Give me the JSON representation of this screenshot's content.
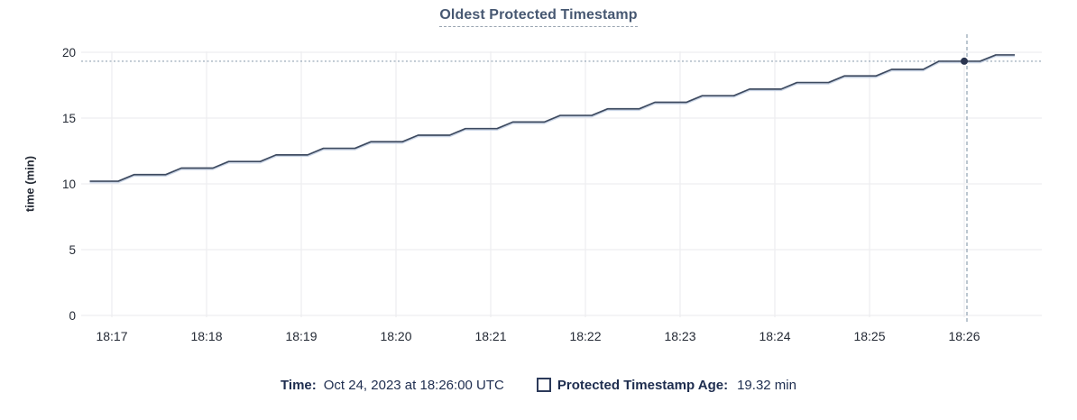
{
  "header": {
    "title": "Oldest Protected Timestamp"
  },
  "chart_data": {
    "type": "line",
    "title": "Oldest Protected Timestamp",
    "xlabel": "",
    "ylabel": "time (min)",
    "ylim": [
      0,
      20
    ],
    "y_ticks": [
      0,
      5,
      10,
      15,
      20
    ],
    "x_axis": {
      "base": "18:16:00",
      "unit": "seconds"
    },
    "x_ticks": [
      {
        "t": 60,
        "label": "18:17"
      },
      {
        "t": 120,
        "label": "18:18"
      },
      {
        "t": 180,
        "label": "18:19"
      },
      {
        "t": 240,
        "label": "18:20"
      },
      {
        "t": 300,
        "label": "18:21"
      },
      {
        "t": 360,
        "label": "18:22"
      },
      {
        "t": 420,
        "label": "18:23"
      },
      {
        "t": 480,
        "label": "18:24"
      },
      {
        "t": 540,
        "label": "18:25"
      },
      {
        "t": 600,
        "label": "18:26"
      }
    ],
    "grid": true,
    "legend_position": "bottom",
    "series": [
      {
        "name": "Protected Timestamp Age",
        "unit": "min",
        "points": [
          [
            46,
            10.2
          ],
          [
            64,
            10.2
          ],
          [
            74,
            10.7
          ],
          [
            94,
            10.7
          ],
          [
            104,
            11.2
          ],
          [
            124,
            11.2
          ],
          [
            134,
            11.7
          ],
          [
            154,
            11.7
          ],
          [
            164,
            12.2
          ],
          [
            184,
            12.2
          ],
          [
            194,
            12.7
          ],
          [
            214,
            12.7
          ],
          [
            224,
            13.2
          ],
          [
            244,
            13.2
          ],
          [
            254,
            13.7
          ],
          [
            274,
            13.7
          ],
          [
            284,
            14.2
          ],
          [
            304,
            14.2
          ],
          [
            314,
            14.7
          ],
          [
            334,
            14.7
          ],
          [
            344,
            15.2
          ],
          [
            364,
            15.2
          ],
          [
            374,
            15.7
          ],
          [
            394,
            15.7
          ],
          [
            404,
            16.2
          ],
          [
            424,
            16.2
          ],
          [
            434,
            16.7
          ],
          [
            454,
            16.7
          ],
          [
            464,
            17.2
          ],
          [
            484,
            17.2
          ],
          [
            494,
            17.7
          ],
          [
            514,
            17.7
          ],
          [
            524,
            18.2
          ],
          [
            544,
            18.2
          ],
          [
            554,
            18.7
          ],
          [
            574,
            18.7
          ],
          [
            584,
            19.32
          ],
          [
            610,
            19.32
          ],
          [
            620,
            19.8
          ],
          [
            632,
            19.8
          ]
        ]
      }
    ],
    "highlight": {
      "t": 600,
      "value": 19.32
    }
  },
  "legend": {
    "time_label": "Time:",
    "time_value": "Oct 24, 2023 at 18:26:00 UTC",
    "series_label": "Protected Timestamp Age:",
    "series_value": "19.32 min"
  },
  "colors": {
    "title": "#475872",
    "axis_text": "#242a35",
    "grid": "#ededf0",
    "line": "#3d4a60",
    "line_glow": "#c5d2e4",
    "point": "#2a3550",
    "crosshair": "#90a2b2",
    "legend_text": "#1e2d4f"
  }
}
